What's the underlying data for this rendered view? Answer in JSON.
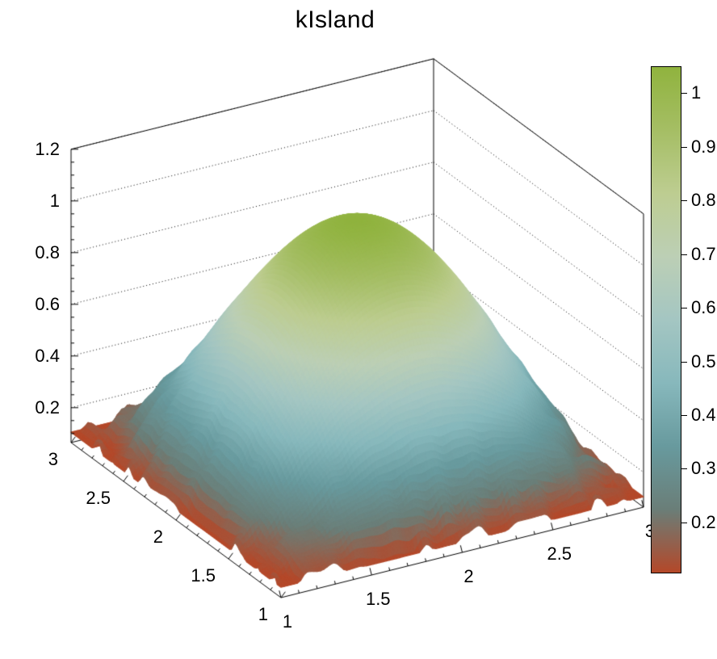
{
  "chart_data": {
    "type": "surface3d",
    "title": "kIsland",
    "palette": {
      "name": "kIsland",
      "stops": [
        0,
        0.125,
        0.25,
        0.375,
        0.5,
        0.625,
        0.75,
        0.875,
        1
      ],
      "colors": [
        "#B44829",
        "#6A7E78",
        "#689A9E",
        "#87B8BC",
        "#A4C6C2",
        "#BCCFB5",
        "#BDCD91",
        "#A5BE64",
        "#90B33E"
      ]
    },
    "x_axis": {
      "min": 1,
      "max": 3,
      "ticks": [
        1,
        1.5,
        2,
        2.5,
        3
      ],
      "labels": [
        "1",
        "1.5",
        "2",
        "2.5",
        "3"
      ]
    },
    "y_axis": {
      "min": 1,
      "max": 3,
      "ticks": [
        1,
        1.5,
        2,
        2.5,
        3
      ],
      "labels": [
        "1",
        "1.5",
        "2",
        "2.5",
        "3"
      ]
    },
    "z_axis": {
      "min": 0.065,
      "max": 1.2,
      "ticks": [
        0.2,
        0.4,
        0.6,
        0.8,
        1,
        1.2
      ],
      "labels": [
        "0.2",
        "0.4",
        "0.6",
        "0.8",
        "1",
        "1.2"
      ]
    },
    "colorbar": {
      "zmin": 0.105,
      "zmax": 1.05,
      "ticks": [
        0.2,
        0.3,
        0.4,
        0.5,
        0.6,
        0.7,
        0.8,
        0.9,
        1
      ],
      "labels": [
        "0.2",
        "0.3",
        "0.4",
        "0.5",
        "0.6",
        "0.7",
        "0.8",
        "0.9",
        "1"
      ]
    },
    "surface": {
      "model": "dome: z = zmin + (peak.z - zmin) * sin(pi*(x-1)/2) * sin(pi*(y-1)/2), ragged low-value rim",
      "zmin": 0.105,
      "peak": {
        "x": 2,
        "y": 2,
        "z": 1.05
      },
      "grid_sample": {
        "x": [
          1,
          1.25,
          1.5,
          1.75,
          2,
          2.25,
          2.5,
          2.75,
          3
        ],
        "y": [
          1,
          1.25,
          1.5,
          1.75,
          2,
          2.25,
          2.5,
          2.75,
          3
        ],
        "z": [
          [
            0.11,
            0.11,
            0.11,
            0.11,
            0.11,
            0.11,
            0.11,
            0.11,
            0.11
          ],
          [
            0.11,
            0.24,
            0.36,
            0.44,
            0.47,
            0.44,
            0.36,
            0.24,
            0.11
          ],
          [
            0.11,
            0.36,
            0.58,
            0.72,
            0.77,
            0.72,
            0.58,
            0.36,
            0.11
          ],
          [
            0.11,
            0.44,
            0.72,
            0.91,
            0.98,
            0.91,
            0.72,
            0.44,
            0.11
          ],
          [
            0.11,
            0.47,
            0.77,
            0.98,
            1.05,
            0.98,
            0.77,
            0.47,
            0.11
          ],
          [
            0.11,
            0.44,
            0.72,
            0.91,
            0.98,
            0.91,
            0.72,
            0.44,
            0.11
          ],
          [
            0.11,
            0.36,
            0.58,
            0.72,
            0.77,
            0.72,
            0.58,
            0.36,
            0.11
          ],
          [
            0.11,
            0.24,
            0.36,
            0.44,
            0.47,
            0.44,
            0.36,
            0.24,
            0.11
          ],
          [
            0.11,
            0.11,
            0.11,
            0.11,
            0.11,
            0.11,
            0.11,
            0.11,
            0.11
          ]
        ]
      }
    },
    "layout_hints": {
      "projection": "parallel",
      "grid": "dotted z gridlines on back walls",
      "legend_position": "right colorbar",
      "background": "#ffffff",
      "frame_color": "#000000",
      "text_color": "#000000"
    }
  }
}
